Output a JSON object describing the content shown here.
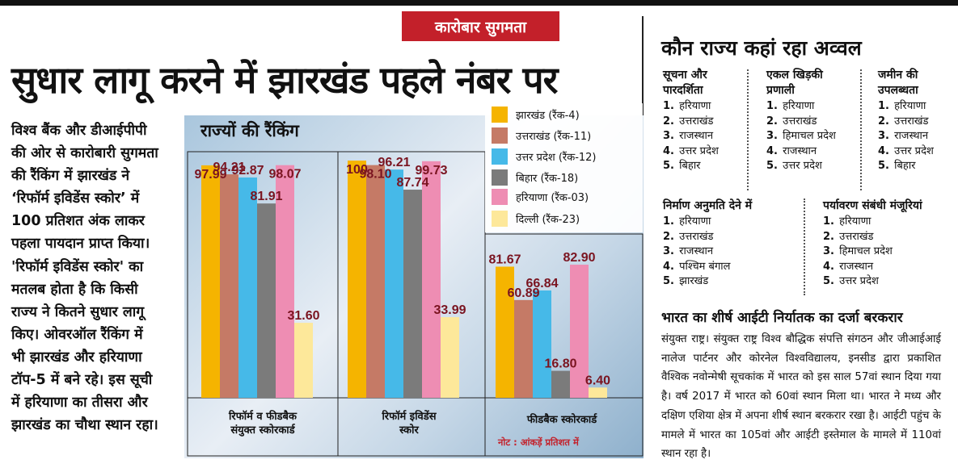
{
  "article": {
    "section_tag": "कारोबार सुगमता",
    "headline": "सुधार लागू करने में झारखंड पहले नंबर पर",
    "body_lines": [
      "विश्व बैंक और डीआईपीपी",
      "की ओर से कारोबारी सुगमता",
      "की रैंकिंग में झारखंड ने",
      "‘रिफॉर्म इविडेंस स्कोर’ में",
      "100 प्रतिशत अंक लाकर",
      "पहला पायदान प्राप्त किया।",
      "'रिफॉर्म इविडेंस स्कोर' का",
      "मतलब होता है कि किसी",
      "राज्य ने कितने सुधार लागू",
      "किए। ओवरऑल रैंकिंग में",
      "भी झारखंड और हरियाणा",
      "टॉप-5 में बने रहे। इस सूची",
      "में हरियाणा का तीसरा और",
      "झारखंड का चौथा स्थान रहा।"
    ]
  },
  "chart_data": {
    "type": "bar",
    "title": "राज्यों की रैंकिंग",
    "categories": [
      "रिफॉर्म व फीडबैक संयुक्त स्कोरकार्ड",
      "रिफॉर्म इविडेंस स्कोर",
      "फीडबैक स्कोरकार्ड"
    ],
    "category_lines": [
      [
        "रिफॉर्म व फीडबैक",
        "संयुक्त स्कोरकार्ड"
      ],
      [
        "रिफॉर्म इविडेंस",
        "स्कोर"
      ],
      [
        "फीडबैक स्कोरकार्ड"
      ]
    ],
    "series": [
      {
        "name": "झारखंड (रैंक-4)",
        "color": "#f5b400",
        "values": [
          97.99,
          100,
          81.67
        ]
      },
      {
        "name": "उत्तराखंड (रैंक-11)",
        "color": "#c57a66",
        "values": [
          94.21,
          98.1,
          60.89
        ]
      },
      {
        "name": "उत्तर प्रदेश (रैंक-12)",
        "color": "#46b9e8",
        "values": [
          92.87,
          96.21,
          66.84
        ]
      },
      {
        "name": "बिहार (रैंक-18)",
        "color": "#7b7b7b",
        "values": [
          81.91,
          87.74,
          16.8
        ]
      },
      {
        "name": "हरियाणा (रैंक-03)",
        "color": "#ee8db3",
        "values": [
          98.07,
          99.73,
          82.9
        ]
      },
      {
        "name": "दिल्ली (रैंक-23)",
        "color": "#fde89a",
        "values": [
          31.6,
          33.99,
          6.4
        ]
      }
    ],
    "value_labels": [
      [
        "97.99",
        "94.21",
        "92.87",
        "81.91",
        "98.07",
        "31.60"
      ],
      [
        "100",
        "98.10",
        "96.21",
        "87.74",
        "99.73",
        "33.99"
      ],
      [
        "81.67",
        "60.89",
        "66.84",
        "16.80",
        "82.90",
        "6.40"
      ]
    ],
    "label_color": "#7a1420",
    "ylim": [
      0,
      100
    ],
    "note": "नोट : आंकड़ें प्रतिशत में"
  },
  "rankings": {
    "title": "कौन राज्य कहां रहा अव्वल",
    "categories": [
      {
        "heading_lines": [
          "सूचना और",
          "पारदर्शिता"
        ],
        "items": [
          "हरियाणा",
          "उत्तराखंड",
          "राजस्थान",
          "उत्तर प्रदेश",
          "बिहार"
        ]
      },
      {
        "heading_lines": [
          "एकल खिड़की",
          "प्रणाली"
        ],
        "items": [
          "हरियाणा",
          "उत्तराखंड",
          "हिमाचल प्रदेश",
          "राजस्थान",
          "उत्तर प्रदेश"
        ]
      },
      {
        "heading_lines": [
          "जमीन की",
          "उपलब्धता"
        ],
        "items": [
          "हरियाणा",
          "उत्तराखंड",
          "राजस्थान",
          "उत्तर प्रदेश",
          "बिहार"
        ]
      },
      {
        "heading_lines": [
          "निर्माण अनुमति देने में"
        ],
        "items": [
          "हरियाणा",
          "उत्तराखंड",
          "राजस्थान",
          "पश्चिम बंगाल",
          "झारखंड"
        ]
      },
      {
        "heading_lines": [
          "पर्यावरण संबंधी मंजूरियां"
        ],
        "items": [
          "हरियाणा",
          "उत्तराखंड",
          "हिमाचल प्रदेश",
          "राजस्थान",
          "उत्तर प्रदेश"
        ]
      }
    ],
    "numbers": [
      "1.",
      "2.",
      "3.",
      "4.",
      "5."
    ]
  },
  "it_story": {
    "title": "भारत का शीर्ष आईटी निर्यातक का दर्जा बरकरार",
    "text": "संयुक्त राष्ट्र। संयुक्त राष्ट्र विश्व बौद्धिक संपत्ति संगठन और जीआईआई नालेज पार्टनर और कोरनेल विश्वविद्यालय, इनसीड द्वारा प्रकाशित वैश्विक नवोन्मेषी सूचकांक में भारत को इस साल 57वां स्थान दिया गया है। वर्ष 2017 में भारत को 60वां स्थान मिला था। भारत ने मध्य और दक्षिण एशिया क्षेत्र में अपना शीर्ष स्थान बरकरार रखा है। आईटी पहुंच के मामले में भारत का 105वां और आईटी इस्तेमाल के मामले में 110वां स्थान रहा है।"
  }
}
